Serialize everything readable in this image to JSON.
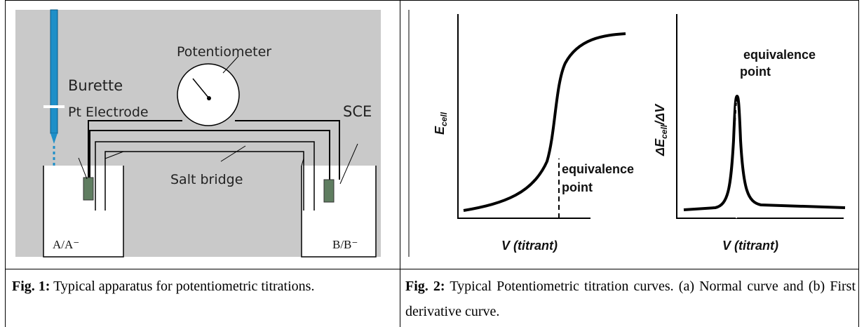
{
  "figure1": {
    "labels": {
      "potentiometer": "Potentiometer",
      "burette": "Burette",
      "electrode": "Pt Electrode",
      "reference": "SCE",
      "salt_bridge": "Salt bridge",
      "left_cell": "A/A⁻",
      "right_cell": "B/B⁻"
    }
  },
  "figure2": {
    "panel_a": {
      "y_label": "E",
      "y_label_sub": "cell",
      "annotation": [
        "equivalence",
        "point"
      ],
      "x_label": "V (titrant)"
    },
    "panel_b": {
      "y_label": "ΔE",
      "y_label_sub": "cell",
      "y_label_rest": "/ΔV",
      "annotation": [
        "equivalence",
        "point"
      ],
      "x_label": "V (titrant)"
    }
  },
  "captions": [
    {
      "label": "Fig. 1:",
      "text": "Typical apparatus for potentiometric titrations."
    },
    {
      "label": "Fig. 2:",
      "text": "Typical Potentiometric titration curves. (a) Normal curve and (b) First derivative curve."
    }
  ]
}
